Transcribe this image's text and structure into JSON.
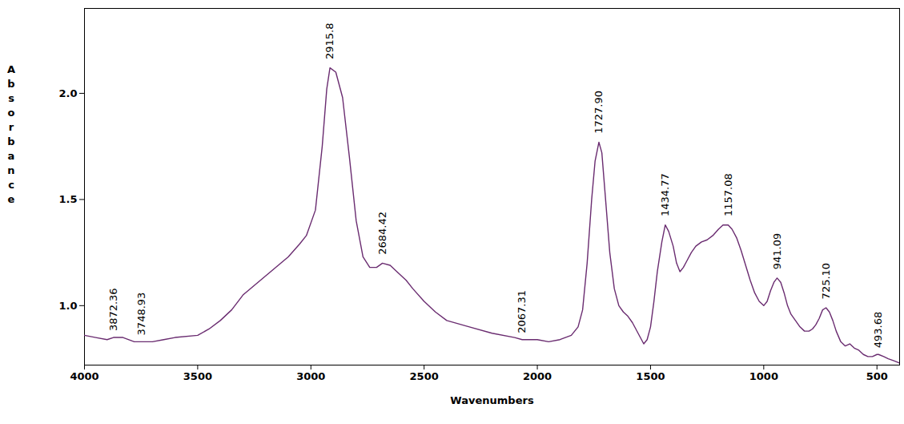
{
  "chart_data": {
    "type": "line",
    "x_label": "Wavenumbers",
    "y_label": "Absorbance",
    "color": "#6a2c70",
    "grid": false,
    "xlim": [
      4000,
      400
    ],
    "ylim": [
      0.72,
      2.4
    ],
    "xticks": [
      4000,
      3500,
      3000,
      2500,
      2000,
      1500,
      1000,
      500
    ],
    "yticks": [
      {
        "value": 1,
        "label": "1.0"
      },
      {
        "value": 1.5,
        "label": "1.5"
      },
      {
        "value": 2,
        "label": "2.0"
      }
    ],
    "x": [
      4000,
      3950,
      3900,
      3872,
      3830,
      3780,
      3748,
      3700,
      3650,
      3600,
      3500,
      3450,
      3400,
      3350,
      3300,
      3200,
      3100,
      3050,
      3020,
      2980,
      2950,
      2930,
      2915.8,
      2890,
      2860,
      2830,
      2800,
      2770,
      2740,
      2710,
      2684,
      2650,
      2620,
      2580,
      2550,
      2500,
      2450,
      2400,
      2300,
      2200,
      2100,
      2067,
      2000,
      1950,
      1900,
      1850,
      1820,
      1800,
      1780,
      1760,
      1745,
      1728,
      1715,
      1700,
      1680,
      1660,
      1640,
      1620,
      1600,
      1580,
      1555,
      1530,
      1515,
      1500,
      1485,
      1470,
      1450,
      1435,
      1420,
      1400,
      1385,
      1370,
      1355,
      1340,
      1320,
      1300,
      1275,
      1250,
      1225,
      1200,
      1180,
      1157,
      1140,
      1120,
      1100,
      1080,
      1060,
      1040,
      1020,
      1000,
      985,
      970,
      955,
      941,
      925,
      910,
      895,
      880,
      860,
      840,
      820,
      800,
      785,
      770,
      755,
      740,
      725,
      710,
      695,
      680,
      660,
      640,
      620,
      600,
      580,
      560,
      540,
      520,
      500,
      493,
      470,
      450,
      425,
      400
    ],
    "values": [
      0.86,
      0.85,
      0.84,
      0.85,
      0.85,
      0.83,
      0.83,
      0.83,
      0.84,
      0.85,
      0.86,
      0.89,
      0.93,
      0.98,
      1.05,
      1.14,
      1.23,
      1.29,
      1.33,
      1.45,
      1.75,
      2.02,
      2.12,
      2.1,
      1.98,
      1.7,
      1.4,
      1.23,
      1.18,
      1.18,
      1.2,
      1.19,
      1.16,
      1.12,
      1.08,
      1.02,
      0.97,
      0.93,
      0.9,
      0.87,
      0.85,
      0.84,
      0.84,
      0.83,
      0.84,
      0.86,
      0.9,
      0.98,
      1.2,
      1.5,
      1.68,
      1.77,
      1.72,
      1.52,
      1.25,
      1.08,
      1.0,
      0.97,
      0.95,
      0.92,
      0.87,
      0.82,
      0.84,
      0.9,
      1.02,
      1.16,
      1.3,
      1.38,
      1.35,
      1.28,
      1.2,
      1.16,
      1.18,
      1.21,
      1.25,
      1.28,
      1.3,
      1.31,
      1.33,
      1.36,
      1.38,
      1.38,
      1.36,
      1.32,
      1.26,
      1.19,
      1.12,
      1.06,
      1.02,
      1.0,
      1.02,
      1.07,
      1.11,
      1.13,
      1.11,
      1.06,
      1.0,
      0.96,
      0.93,
      0.9,
      0.88,
      0.88,
      0.89,
      0.91,
      0.94,
      0.98,
      0.99,
      0.97,
      0.93,
      0.88,
      0.83,
      0.81,
      0.82,
      0.8,
      0.79,
      0.77,
      0.76,
      0.76,
      0.77,
      0.77,
      0.76,
      0.75,
      0.74,
      0.73
    ],
    "annotations": [
      {
        "x": 3872.36,
        "y": 0.88,
        "text": "3872.36"
      },
      {
        "x": 3748.93,
        "y": 0.86,
        "text": "3748.93"
      },
      {
        "x": 2915.8,
        "y": 2.16,
        "text": "2915.8"
      },
      {
        "x": 2684.42,
        "y": 1.24,
        "text": "2684.42"
      },
      {
        "x": 2067.31,
        "y": 0.87,
        "text": "2067.31"
      },
      {
        "x": 1727.9,
        "y": 1.81,
        "text": "1727.90"
      },
      {
        "x": 1434.77,
        "y": 1.42,
        "text": "1434.77"
      },
      {
        "x": 1157.08,
        "y": 1.42,
        "text": "1157.08"
      },
      {
        "x": 941.09,
        "y": 1.17,
        "text": "941.09"
      },
      {
        "x": 725.1,
        "y": 1.03,
        "text": "725.10"
      },
      {
        "x": 493.68,
        "y": 0.8,
        "text": "493.68"
      }
    ]
  }
}
